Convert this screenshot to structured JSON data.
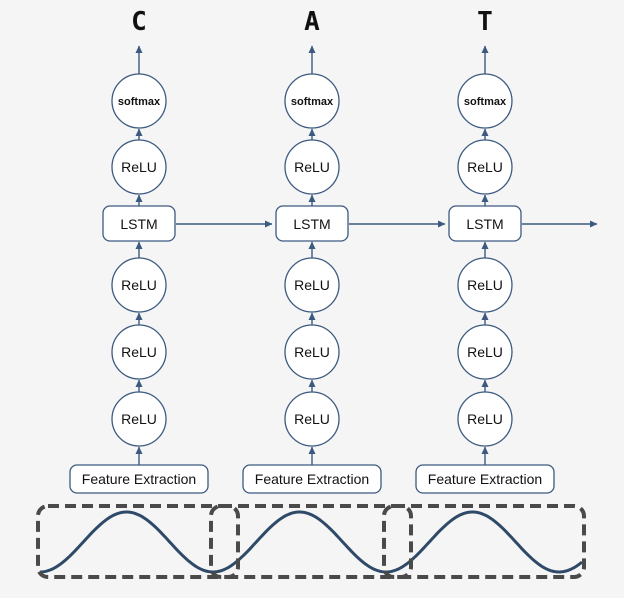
{
  "columns": [
    {
      "output_char": "C",
      "layers_top_down": [
        "softmax",
        "ReLU",
        "LSTM",
        "ReLU",
        "ReLU",
        "ReLU"
      ],
      "input_label": "Feature Extraction"
    },
    {
      "output_char": "A",
      "layers_top_down": [
        "softmax",
        "ReLU",
        "LSTM",
        "ReLU",
        "ReLU",
        "ReLU"
      ],
      "input_label": "Feature Extraction"
    },
    {
      "output_char": "T",
      "layers_top_down": [
        "softmax",
        "ReLU",
        "LSTM",
        "ReLU",
        "ReLU",
        "ReLU"
      ],
      "input_label": "Feature Extraction"
    }
  ],
  "colors": {
    "node_stroke": "#3c5a80",
    "arrow": "#3c5a80",
    "waveform": "#2f4a68",
    "window_dash": "#4a4a4a",
    "background": "#f5f5f5"
  }
}
